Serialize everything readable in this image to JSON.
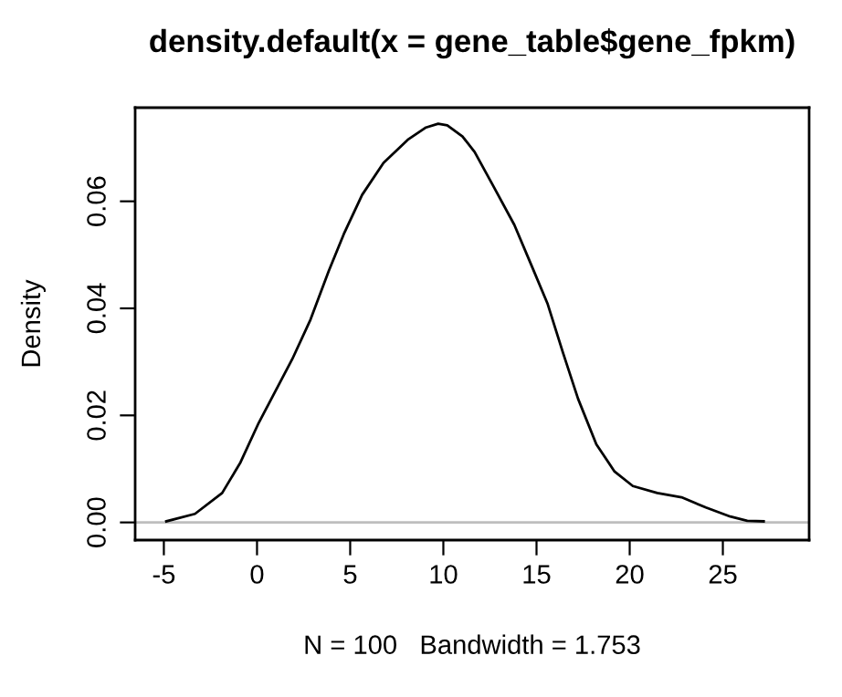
{
  "chart_data": {
    "type": "line",
    "title": "density.default(x = gene_table$gene_fpkm)",
    "xlabel": "N = 100   Bandwidth = 1.753",
    "ylabel": "Density",
    "series": [
      {
        "color": "#000000",
        "x": [
          -4.87,
          -3.33,
          -1.87,
          -0.89,
          0.09,
          1.89,
          2.87,
          3.85,
          4.66,
          5.64,
          6.79,
          8.09,
          9.07,
          9.72,
          10.21,
          11.03,
          11.68,
          12.66,
          13.81,
          14.78,
          15.6,
          16.42,
          17.23,
          18.21,
          19.19,
          20.17,
          21.48,
          22.78,
          24.09,
          25.4,
          26.31,
          27.19
        ],
        "values": [
          0.0002,
          0.0016,
          0.0055,
          0.0112,
          0.0186,
          0.0305,
          0.0379,
          0.047,
          0.0539,
          0.0612,
          0.0672,
          0.0715,
          0.0738,
          0.0745,
          0.0742,
          0.0721,
          0.0692,
          0.063,
          0.0556,
          0.0476,
          0.0408,
          0.0317,
          0.0231,
          0.0146,
          0.0095,
          0.0068,
          0.0055,
          0.0047,
          0.0028,
          0.0011,
          0.0003,
          0.0002
        ]
      }
    ],
    "xlim": [
      -6.54,
      29.63
    ],
    "ylim": [
      -0.0033,
      0.0775
    ],
    "xticks": [
      -5,
      0,
      5,
      10,
      15,
      20,
      25
    ],
    "yticks": [
      {
        "value": 0,
        "label": "0.00"
      },
      {
        "value": 0.02,
        "label": "0.02"
      },
      {
        "value": 0.04,
        "label": "0.04"
      },
      {
        "value": 0.06,
        "label": "0.06"
      }
    ],
    "ref_lines": [
      {
        "axis": "y",
        "value": 0,
        "color": "#bebebe",
        "line_style": "solid"
      }
    ],
    "grid": false,
    "legend": false,
    "marker": "none",
    "line_style": "solid"
  }
}
